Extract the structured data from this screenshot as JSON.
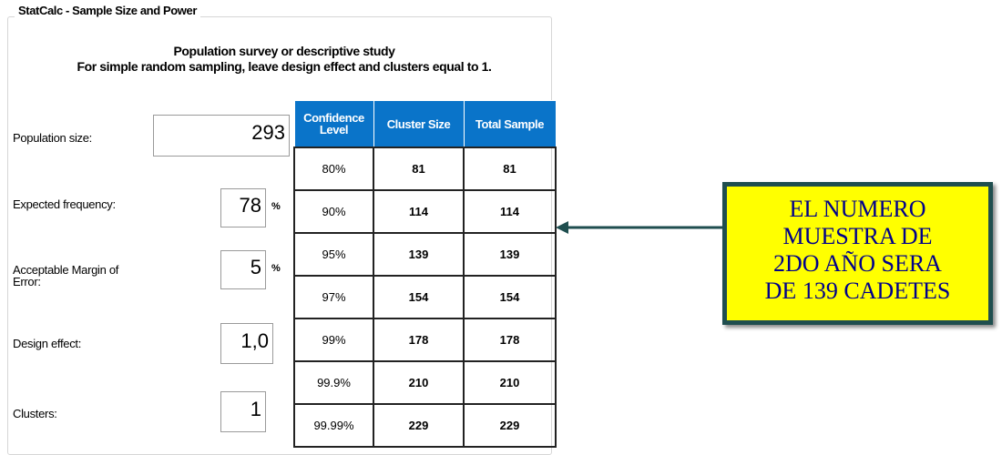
{
  "window": {
    "title": "StatCalc - Sample Size and Power"
  },
  "header": {
    "title": "Population survey or descriptive study",
    "subtitle": "For simple random sampling, leave design effect and clusters equal to 1."
  },
  "fields": [
    {
      "label": "Population size:",
      "value": "293"
    },
    {
      "label": "Expected frequency:",
      "value": "78",
      "unit": "%"
    },
    {
      "label": "Acceptable Margin of Error:",
      "value": "5",
      "unit": "%"
    },
    {
      "label": "Design effect:",
      "value": "1,0"
    },
    {
      "label": "Clusters:",
      "value": "1"
    }
  ],
  "table": {
    "columns": [
      "Confidence Level",
      "Cluster Size",
      "Total Sample"
    ],
    "rows": [
      [
        "80%",
        "81",
        "81"
      ],
      [
        "90%",
        "114",
        "114"
      ],
      [
        "95%",
        "139",
        "139"
      ],
      [
        "97%",
        "154",
        "154"
      ],
      [
        "99%",
        "178",
        "178"
      ],
      [
        "99.9%",
        "210",
        "210"
      ],
      [
        "99.99%",
        "229",
        "229"
      ]
    ]
  },
  "callout": {
    "lines": [
      "EL NUMERO",
      "MUESTRA DE",
      "2DO AÑO SERA",
      "DE 139 CADETES"
    ]
  }
}
